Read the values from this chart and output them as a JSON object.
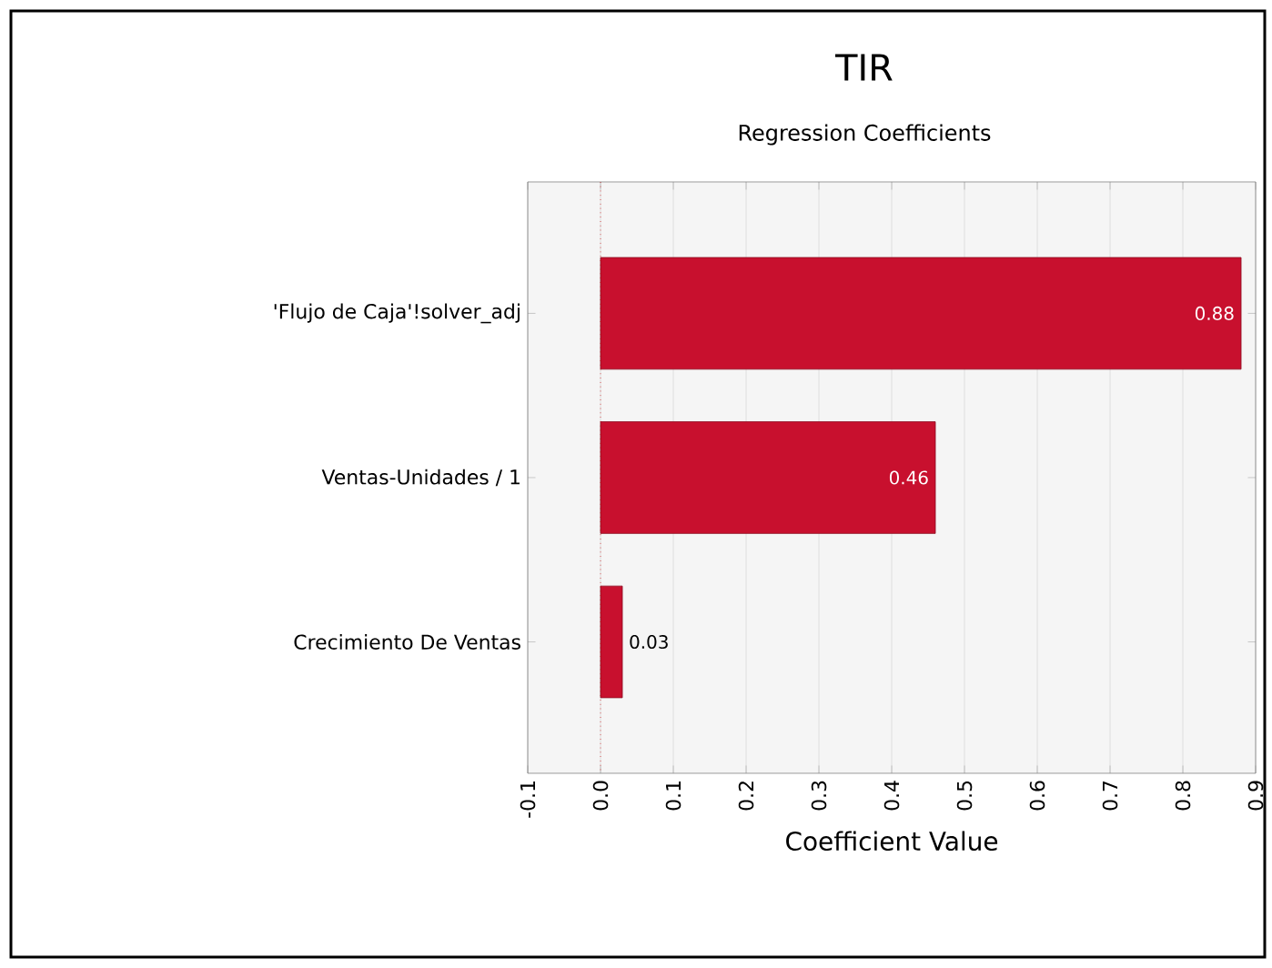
{
  "chart_data": {
    "type": "bar",
    "orientation": "horizontal",
    "title": "TIR",
    "subtitle": "Regression Coefficients",
    "xlabel": "Coefficient Value",
    "categories": [
      "'Flujo de Caja'!solver_adj",
      "Ventas-Unidades / 1",
      "Crecimiento De Ventas"
    ],
    "values": [
      0.88,
      0.46,
      0.03
    ],
    "color": "#c8102e",
    "xlim": [
      -0.1,
      0.9
    ],
    "xticks": [
      -0.1,
      {
        "value": 0,
        "label": "0.0"
      },
      0.1,
      0.2,
      0.3,
      0.4,
      0.5,
      0.6,
      0.7,
      0.8,
      0.9
    ],
    "grid": "x",
    "data_labels": true,
    "ref_lines": [
      {
        "axis": "x",
        "value": 0,
        "color": "#cc0000",
        "line_style": "dotted"
      }
    ]
  }
}
